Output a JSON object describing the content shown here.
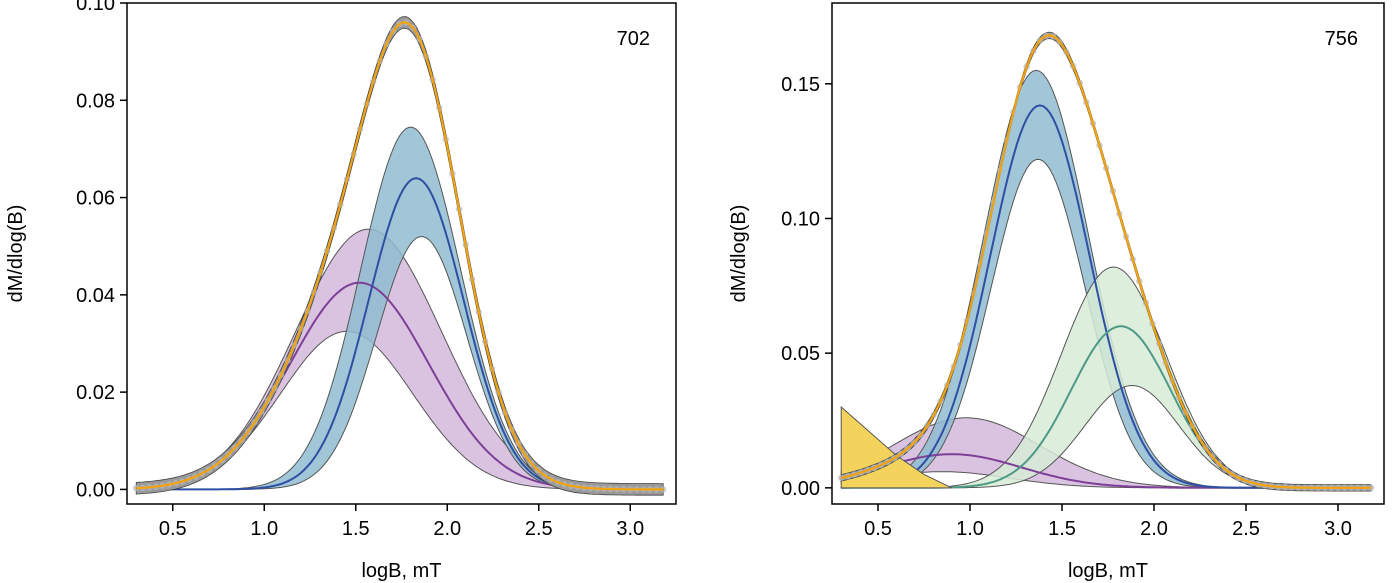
{
  "chart_data": [
    {
      "type": "line",
      "panel_label": "702",
      "xlabel": "logB, mT",
      "ylabel": "dM/dlog(B)",
      "xlim": [
        0.25,
        3.25
      ],
      "ylim": [
        -0.003,
        0.1
      ],
      "x_ticks": [
        0.5,
        1.0,
        1.5,
        2.0,
        2.5,
        3.0
      ],
      "x_tick_labels": [
        "0.5",
        "1.0",
        "1.5",
        "2.0",
        "2.5",
        "3.0"
      ],
      "y_ticks": [
        0.0,
        0.02,
        0.04,
        0.06,
        0.08,
        0.1
      ],
      "y_tick_labels": [
        "0.00",
        "0.02",
        "0.04",
        "0.06",
        "0.08",
        "0.10"
      ],
      "grid": false,
      "colors": {
        "data_points": "#b8b8b8",
        "total_fit": "#f2a30f",
        "measured": "#000000",
        "envelope": "#999999",
        "component_blue": "#2e4fa3",
        "component_blue_band": "#8fbcd0",
        "component_purple": "#7e3f98",
        "component_purple_band": "#d3b8dc"
      },
      "components": [
        {
          "mean": 1.52,
          "amp": 0.0425,
          "sigma": 0.38,
          "upper_amp": 0.0535,
          "upper_mean": 1.57,
          "lower_amp": 0.0325,
          "lower_mean": 1.45,
          "line_color": "#7e3f98",
          "band_color": "#d3b8dc"
        },
        {
          "mean": 1.83,
          "amp": 0.064,
          "sigma": 0.26,
          "upper_amp": 0.0745,
          "upper_mean": 1.8,
          "lower_amp": 0.052,
          "lower_mean": 1.86,
          "line_color": "#2e4fa3",
          "band_color": "#8fbcd0"
        }
      ],
      "total_peak": {
        "x": 1.74,
        "y": 0.096
      },
      "x_range": [
        0.3,
        3.18
      ]
    },
    {
      "type": "line",
      "panel_label": "756",
      "xlabel": "logB, mT",
      "ylabel": "dM/dlog(B)",
      "xlim": [
        0.25,
        3.25
      ],
      "ylim": [
        -0.006,
        0.18
      ],
      "x_ticks": [
        0.5,
        1.0,
        1.5,
        2.0,
        2.5,
        3.0
      ],
      "x_tick_labels": [
        "0.5",
        "1.0",
        "1.5",
        "2.0",
        "2.5",
        "3.0"
      ],
      "y_ticks": [
        0.0,
        0.05,
        0.1,
        0.15
      ],
      "y_tick_labels": [
        "0.00",
        "0.05",
        "0.10",
        "0.15"
      ],
      "grid": false,
      "colors": {
        "data_points": "#b8b8b8",
        "total_fit": "#f2a30f",
        "measured": "#000000",
        "envelope": "#999999",
        "component_yellow_band": "#f3d35c",
        "component_purple": "#7e3f98",
        "component_purple_band": "#d3b8dc",
        "component_blue": "#2e4fa3",
        "component_blue_band": "#8fbcd0",
        "component_green": "#4e9a86",
        "component_green_band": "#d7ebd7"
      },
      "components": [
        {
          "mean": 0.9,
          "amp": 0.0125,
          "sigma": 0.38,
          "upper_amp": 0.026,
          "upper_mean": 0.98,
          "lower_amp": 0.006,
          "lower_mean": 0.85,
          "line_color": "#7e3f98",
          "band_color": "#d3b8dc"
        },
        {
          "mean": 1.38,
          "amp": 0.142,
          "sigma": 0.27,
          "upper_amp": 0.155,
          "upper_mean": 1.36,
          "lower_amp": 0.122,
          "lower_mean": 1.37,
          "line_color": "#2e4fa3",
          "band_color": "#8fbcd0"
        },
        {
          "mean": 1.82,
          "amp": 0.06,
          "sigma": 0.27,
          "upper_amp": 0.082,
          "upper_mean": 1.78,
          "lower_amp": 0.038,
          "lower_mean": 1.88,
          "line_color": "#4e9a86",
          "band_color": "#d7ebd7"
        }
      ],
      "total_peak": {
        "x": 1.47,
        "y": 0.168
      },
      "x_range": [
        0.3,
        3.18
      ]
    }
  ]
}
